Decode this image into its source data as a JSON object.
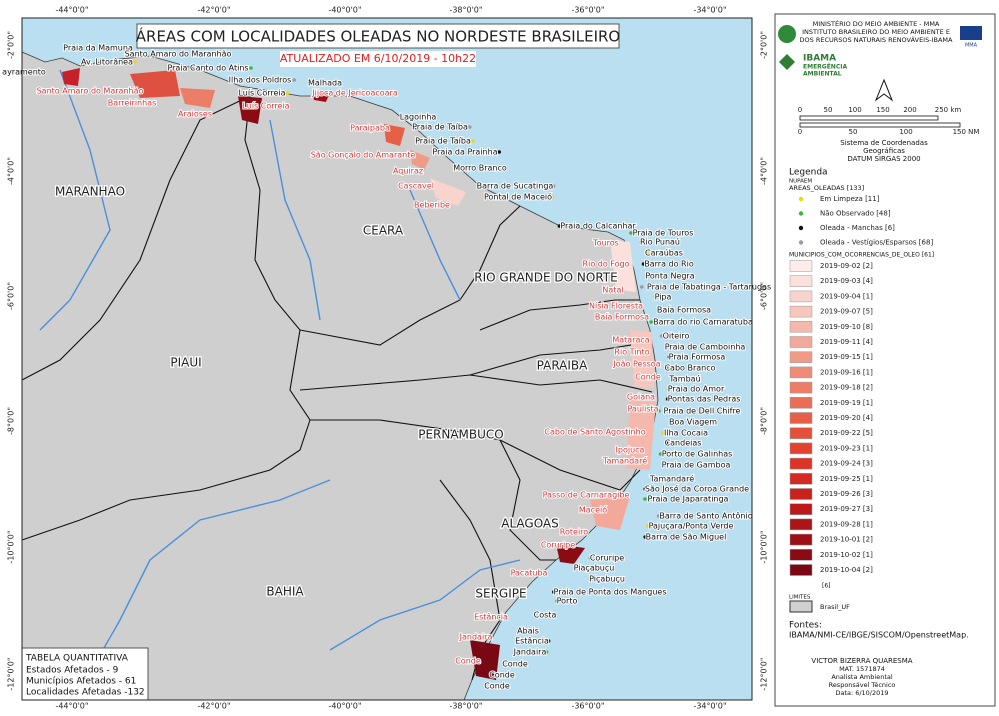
{
  "title": "ÁREAS COM LOCALIDADES OLEADAS NO NORDESTE BRASILEIRO",
  "subtitle": "ATUALIZADO EM 6/10/2019 - 10h22",
  "lon_ticks": [
    "-44°0'0\"",
    "-42°0'0\"",
    "-40°0'0\"",
    "-38°0'0\"",
    "-36°0'0\"",
    "-34°0'0\""
  ],
  "lat_ticks": [
    "-2°0'0\"",
    "-4°0'0\"",
    "-6°0'0\"",
    "-8°0'0\"",
    "-10°0'0\"",
    "-12°0'0\""
  ],
  "states": [
    "MARANHAO",
    "CEARA",
    "RIO GRANDE DO NORTE",
    "PIAUI",
    "PARAIBA",
    "PERNAMBUCO",
    "ALAGOAS",
    "SERGIPE",
    "BAHIA"
  ],
  "localities": [
    "ayramento",
    "Praia da Mamuna",
    "Av. Litorânea",
    "Santo Amaro do Maranhão",
    "Praia Canto do Atins",
    "Ilha dos Poldros",
    "Luís Correia",
    "Malhada",
    "Lagoinha",
    "Praia de Taíba",
    "Praia de Taíba",
    "Praia da Prainha",
    "Morro Branco",
    "Barra de Sucatinga",
    "Pontal de Maceió",
    "Praia do Calcanhar",
    "Praia de Touros",
    "Rio Punaú",
    "Caraúbas",
    "Barra do Rio",
    "Ponta Negra",
    "Praia de Tabatinga - Tartarugas",
    "Pipa",
    "Baía Formosa",
    "Barra do rio Carnaratuba",
    "Oiteiro",
    "Praia de Camboinha",
    "Praia Formosa",
    "Cabo Branco",
    "Tambaú",
    "Praia do Amor",
    "Pontas das Pedras",
    "Praia de Dell Chifre",
    "Boa Viagem",
    "Ilha Cocaia",
    "Candeias",
    "Porto de Galinhas",
    "Praia de Gamboa",
    "Tamandaré",
    "São José da Coroa Grande",
    "Praia de Japaratinga",
    "Barra de Santo Antônio",
    "Pajuçara/Ponta Verde",
    "Barra de São Miguel",
    "Coruripe",
    "Piaçabuçu",
    "Piçabuçu",
    "Praia de Ponta dos Mangues",
    "Porto",
    "Costa",
    "Abais",
    "Estância",
    "Jandaira",
    "Conde",
    "Conde",
    "Conde"
  ],
  "municipalities": [
    "Santo Amaro do Maranhão",
    "Barreirinhas",
    "Araioses",
    "Luís Correia",
    "Jijoca de Jericoacoara",
    "Paraipaba",
    "São Gonçalo do Amarante",
    "Aquiraz",
    "Cascavel",
    "Beberibe",
    "Touros",
    "Rio do Fogo",
    "Natal",
    "Nísia Floresta",
    "Baía Formosa",
    "Mataraca",
    "Rio Tinto",
    "João Pessoa",
    "Conde",
    "Goiana",
    "Paulista",
    "Cabo de Santo Agostinho",
    "Ipojuca",
    "Tamandaré",
    "Passo de Carnaragibe",
    "Maceió",
    "Roteiro",
    "Coruripe",
    "Pacatuba",
    "Estância",
    "Jandaira",
    "Conde"
  ],
  "table": {
    "title": "TABELA QUANTITATIVA",
    "rows": [
      "Estados Afetados - 9",
      "Municípios Afetados - 61",
      "Localidades Afetadas -132"
    ]
  },
  "header": {
    "lines": [
      "MINISTÉRIO DO MEIO AMBIENTE - MMA",
      "INSTITUTO BRASILEIRO DO MEIO AMBIENTE E",
      "DOS RECURSOS NATURAIS RENOVÁVEIS-IBAMA"
    ],
    "logo": [
      "IBAMA",
      "EMERGÊNCIA",
      "AMBIENTAL"
    ],
    "mma": "MMA"
  },
  "scale": {
    "km": [
      "0",
      "50",
      "100",
      "150",
      "200",
      "250 km"
    ],
    "nm": [
      "0",
      "50",
      "100",
      "150 NM"
    ]
  },
  "crs": [
    "Sistema de Coordenadas",
    "Geográficas",
    "DATUM SIRGAS 2000"
  ],
  "legend": {
    "title": "Legenda",
    "group": "NUPAEM",
    "points_title": "AREAS_OLEADAS [133]",
    "points": [
      {
        "name": "Em Limpeza [11]",
        "color": "#f5d400"
      },
      {
        "name": "Não Observado [48]",
        "color": "#3db83d"
      },
      {
        "name": "Oleada - Manchas [6]",
        "color": "#111111"
      },
      {
        "name": "Oleada - Vestígios/Esparsos [68]",
        "color": "#9a9aa8"
      }
    ],
    "classes_title": "MUNICIPIOS_COM_OCORRENCIAS_DE_OLEO [61]",
    "classes": [
      {
        "name": "2019-09-02 [2]",
        "color": "#fdecea"
      },
      {
        "name": "2019-09-03 [4]",
        "color": "#fbe0dc"
      },
      {
        "name": "2019-09-04 [1]",
        "color": "#f9d4ce"
      },
      {
        "name": "2019-09-07 [5]",
        "color": "#f7c6bd"
      },
      {
        "name": "2019-09-10 [8]",
        "color": "#f5b8ac"
      },
      {
        "name": "2019-09-11 [4]",
        "color": "#f3a999"
      },
      {
        "name": "2019-09-15 [1]",
        "color": "#f09a88"
      },
      {
        "name": "2019-09-16 [1]",
        "color": "#ee8c77"
      },
      {
        "name": "2019-09-18 [2]",
        "color": "#ec7d66"
      },
      {
        "name": "2019-09-19 [1]",
        "color": "#ea6e56"
      },
      {
        "name": "2019-09-20 [4]",
        "color": "#e85f48"
      },
      {
        "name": "2019-09-22 [5]",
        "color": "#e5503b"
      },
      {
        "name": "2019-09-23 [1]",
        "color": "#e2422f"
      },
      {
        "name": "2019-09-24 [3]",
        "color": "#dc3427"
      },
      {
        "name": "2019-09-25 [1]",
        "color": "#d42a22"
      },
      {
        "name": "2019-09-26 [3]",
        "color": "#c9211d"
      },
      {
        "name": "2019-09-27 [3]",
        "color": "#bc1a1a"
      },
      {
        "name": "2019-09-28 [1]",
        "color": "#ad1418"
      },
      {
        "name": "2019-10-01 [2]",
        "color": "#9c0f17"
      },
      {
        "name": "2019-10-02 [1]",
        "color": "#8b0b15"
      },
      {
        "name": "2019-10-04 [2]",
        "color": "#790714"
      }
    ],
    "classes_other": "[6]",
    "limits_title": "LIMITES",
    "limits": "Brasil_UF"
  },
  "sources": [
    "Fontes:",
    "IBAMA/NMI-CE/IBGE/SISCOM/OpenstreetMap."
  ],
  "author": [
    "VICTOR BIZERRA QUARESMA",
    "MAT. 1571874",
    "Analista Ambiental",
    "Responsável Técnico",
    "Data: 6/10/2019"
  ]
}
